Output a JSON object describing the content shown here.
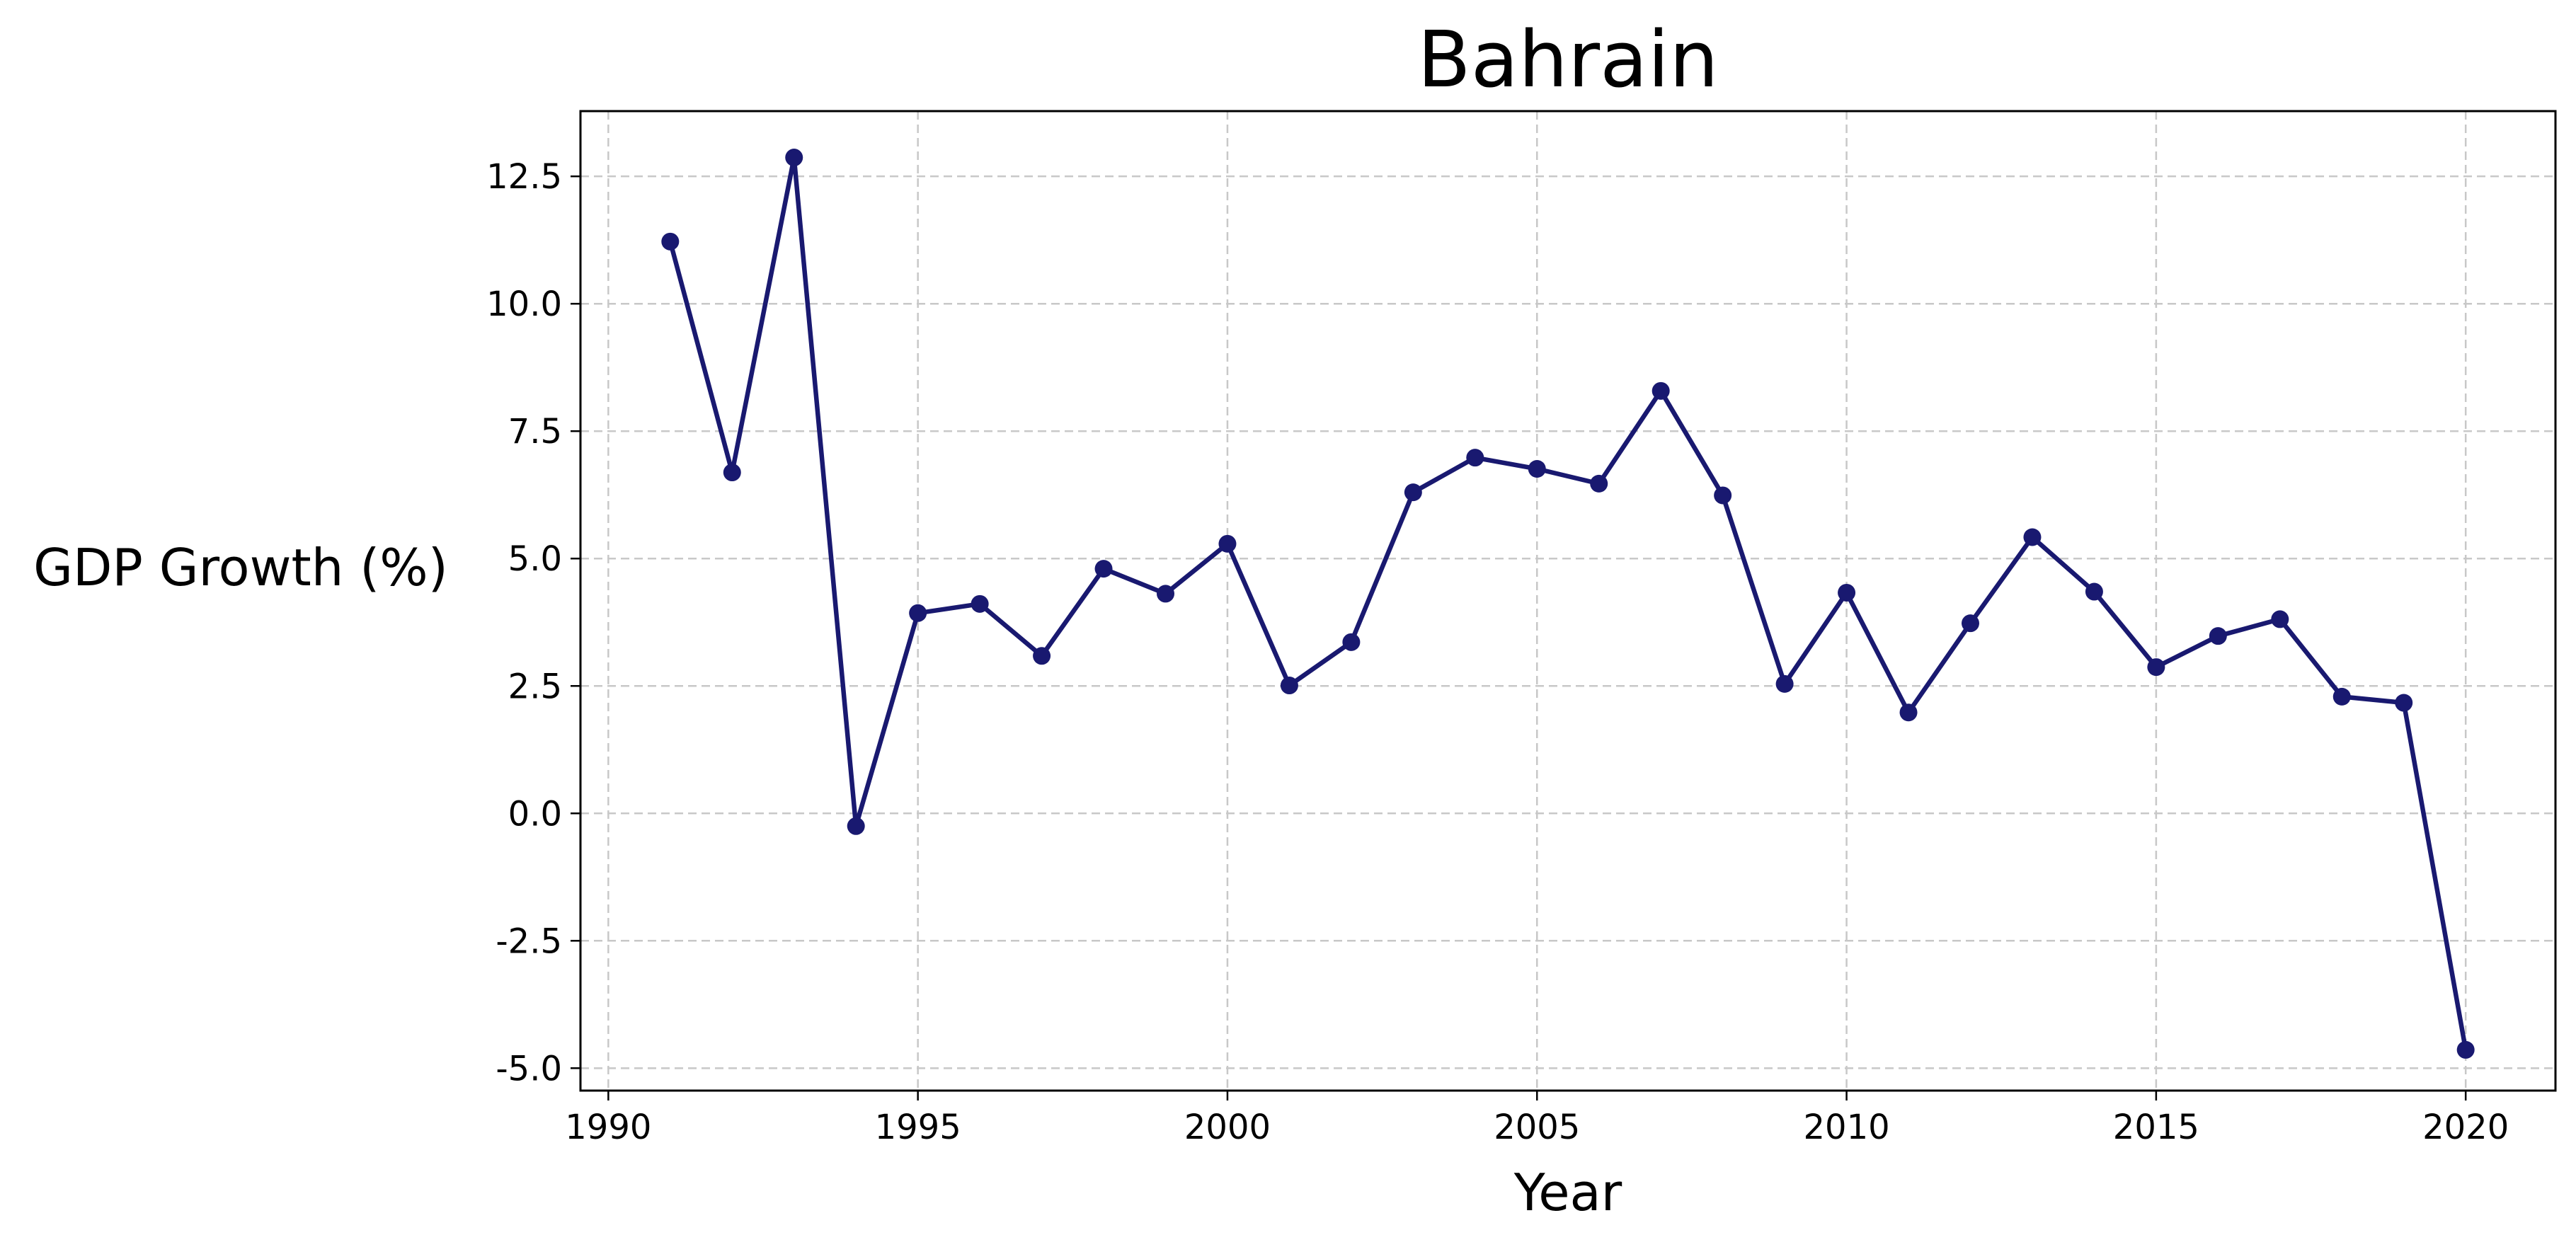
{
  "chart_data": {
    "type": "line",
    "title": "Bahrain",
    "xlabel": "Year",
    "ylabel": "GDP Growth (%)",
    "xlim": [
      1989.55,
      2021.45
    ],
    "ylim": [
      -5.44,
      13.78
    ],
    "xticks": [
      1990,
      1995,
      2000,
      2005,
      2010,
      2015,
      2020
    ],
    "yticks": [
      -5.0,
      -2.5,
      0.0,
      2.5,
      5.0,
      7.5,
      10.0,
      12.5
    ],
    "ytick_labels": [
      "-5.0",
      "-2.5",
      "0.0",
      "2.5",
      "5.0",
      "7.5",
      "10.0",
      "12.5"
    ],
    "grid": true,
    "color": "#191970",
    "series": [
      {
        "x": [
          1991,
          1992,
          1993,
          1994,
          1995,
          1996,
          1997,
          1998,
          1999,
          2000,
          2001,
          2002,
          2003,
          2004,
          2005,
          2006,
          2007,
          2008,
          2009,
          2010,
          2011,
          2012,
          2013,
          2014,
          2015,
          2016,
          2017,
          2018,
          2019,
          2020
        ],
        "values": [
          11.22,
          6.69,
          12.87,
          -0.25,
          3.93,
          4.11,
          3.09,
          4.8,
          4.31,
          5.29,
          2.51,
          3.36,
          6.3,
          6.98,
          6.76,
          6.47,
          8.29,
          6.24,
          2.54,
          4.33,
          1.98,
          3.73,
          5.42,
          4.35,
          2.87,
          3.48,
          3.81,
          2.29,
          2.17,
          -4.64
        ]
      }
    ]
  }
}
